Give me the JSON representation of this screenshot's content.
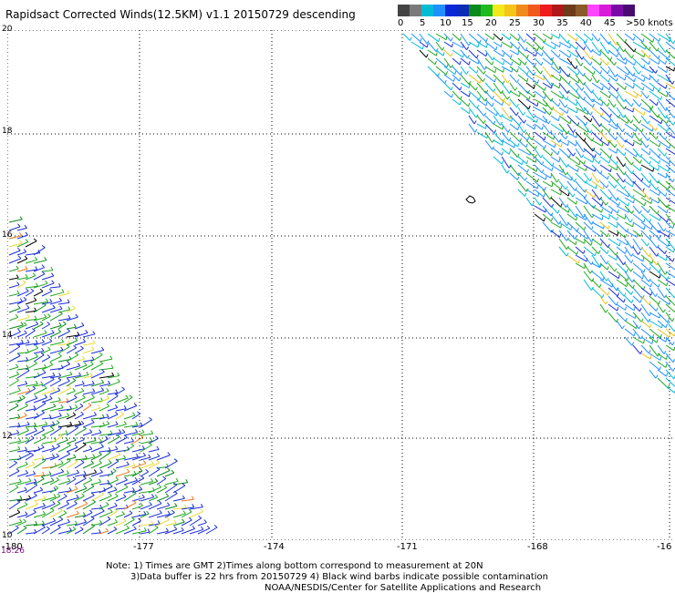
{
  "title": "Rapidsact Corrected Winds(12.5KM) v1.1 20150729 descending",
  "colorbar": {
    "colors": [
      "#444444",
      "#7a7a7a",
      "#00bcd4",
      "#1e90ff",
      "#0a28d6",
      "#0b2bb8",
      "#0a8a1a",
      "#1fba1f",
      "#f2e81a",
      "#f5c419",
      "#f08a1a",
      "#ef5a1a",
      "#ee1c1c",
      "#b01818",
      "#6e3b1a",
      "#8a5a2a",
      "#ff44ff",
      "#d81bd8",
      "#7a0aa8",
      "#4a0a72"
    ],
    "labels": [
      "0",
      "5",
      "10",
      "15",
      "20",
      "25",
      "30",
      "35",
      "40",
      "45",
      ">50 knots"
    ]
  },
  "y_axis": {
    "labels": [
      "20",
      "18",
      "16",
      "14",
      "12",
      "10"
    ]
  },
  "x_axis": {
    "labels": [
      "-180",
      "-177",
      "-174",
      "-171",
      "-168",
      "-16"
    ]
  },
  "time_label": "18:26",
  "notes": [
    "Note: 1) Times are GMT 2)Times along bottom correspond to measurement at 20N",
    "3)Data buffer is 22 hrs from 20150729 4) Black wind barbs indicate possible contamination",
    "NOAA/NESDIS/Center for Satellite Applications and Research"
  ],
  "map": {
    "island": "Johnston Atoll outline"
  }
}
